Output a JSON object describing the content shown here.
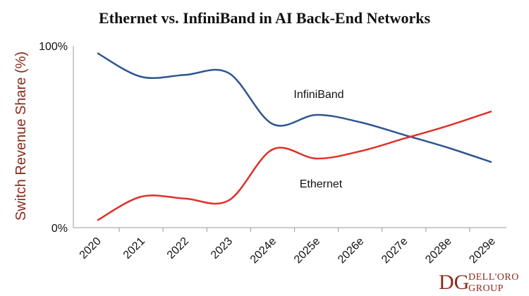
{
  "chart_data": {
    "type": "line",
    "title": "Ethernet vs. InfiniBand in AI Back-End Networks",
    "ylabel": "Switch Revenue Share (%)",
    "xlabel": "",
    "yticks": [
      "0%",
      "100%"
    ],
    "ylim": [
      0,
      100
    ],
    "categories": [
      "2020",
      "2021",
      "2022",
      "2023",
      "2024e",
      "2025e",
      "2026e",
      "2027e",
      "2028e",
      "2029e"
    ],
    "series": [
      {
        "name": "InfiniBand",
        "color": "#2e5590",
        "values": [
          96,
          83,
          84,
          85,
          57,
          62,
          58,
          51,
          44,
          36
        ]
      },
      {
        "name": "Ethernet",
        "color": "#e0302a",
        "values": [
          4,
          17,
          16,
          15,
          43,
          38,
          42,
          49,
          56,
          64
        ]
      }
    ],
    "grid": false,
    "legend": "inline labels"
  },
  "logo": {
    "mark": "DG",
    "line1": "DELL'ORO",
    "line2": "GROUP"
  }
}
